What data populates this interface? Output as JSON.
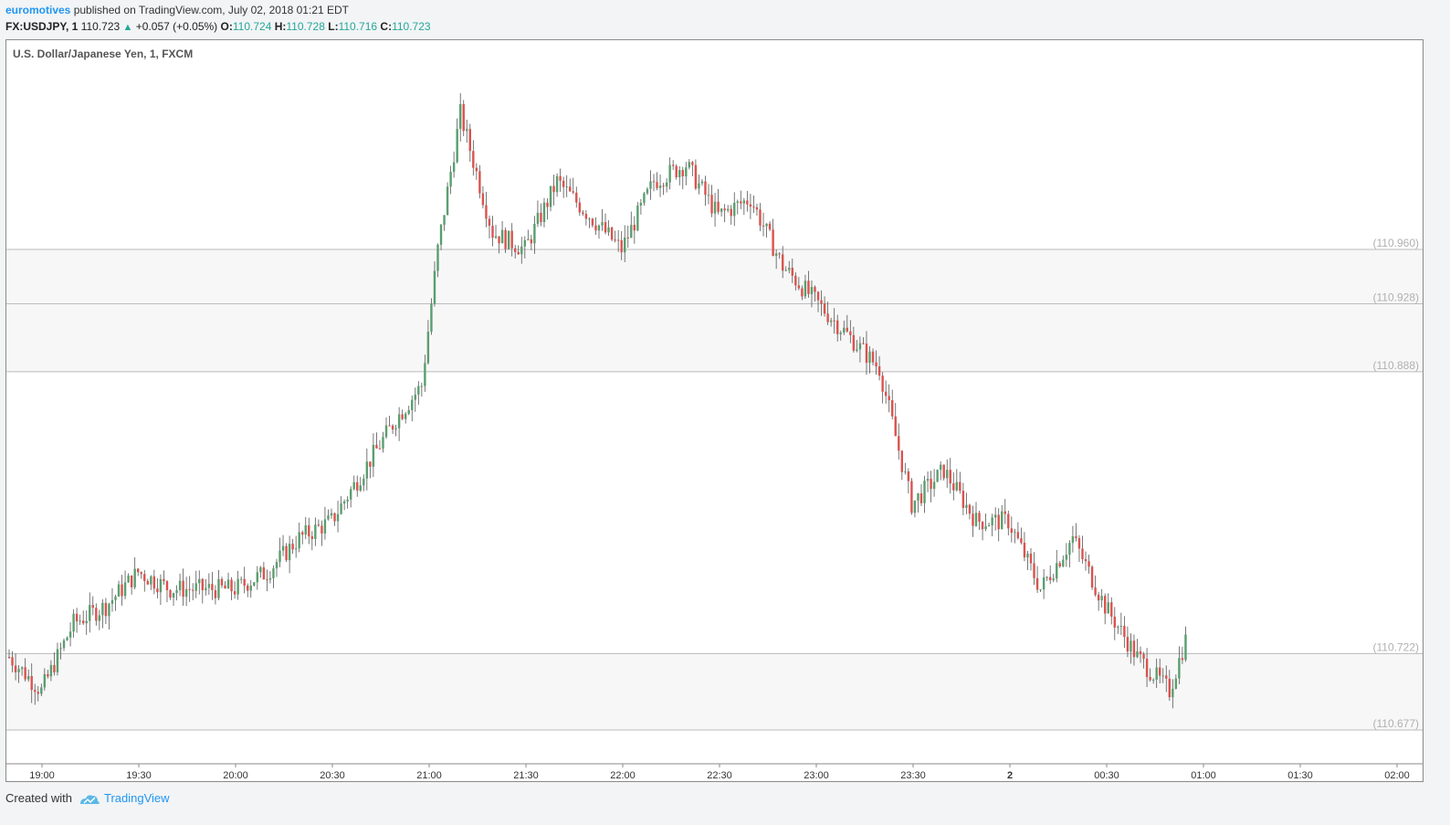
{
  "header": {
    "author": "euromotives",
    "published": " published on TradingView.com, July 02, 2018 01:21 EDT",
    "symbol": "FX:USDJPY, 1",
    "last": "110.723",
    "change_arrow": "▲",
    "change": "+0.057 (+0.05%)",
    "o_label": "O:",
    "o": "110.724",
    "h_label": "H:",
    "h": "110.728",
    "l_label": "L:",
    "l": "110.716",
    "c_label": "C:",
    "c": "110.723"
  },
  "footer": {
    "created_with": "Created with",
    "brand": "TradingView"
  },
  "colors": {
    "up": "#5a9e6f",
    "down": "#d9534f",
    "zone": "#f7f7f7",
    "grid": "#bbbbbb",
    "label": "#b0b0b0"
  },
  "chart_data": {
    "type": "candlestick",
    "title": "U.S. Dollar/Japanese Yen, 1, FXCM",
    "x_tick_labels": [
      "19:00",
      "19:30",
      "20:00",
      "20:30",
      "21:00",
      "21:30",
      "22:00",
      "22:30",
      "23:00",
      "23:30",
      "2",
      "00:30",
      "01:00",
      "01:30",
      "02:00"
    ],
    "price_levels": [
      110.96,
      110.928,
      110.888,
      110.722,
      110.677
    ],
    "price_level_labels": [
      "(110.960)",
      "(110.928)",
      "(110.888)",
      "(110.722)",
      "(110.677)"
    ],
    "zones": [
      [
        110.96,
        110.928
      ],
      [
        110.928,
        110.888
      ],
      [
        110.722,
        110.677
      ]
    ],
    "close_path": [
      [
        0,
        110.72
      ],
      [
        10,
        110.7
      ],
      [
        20,
        110.74
      ],
      [
        30,
        110.75
      ],
      [
        40,
        110.77
      ],
      [
        50,
        110.76
      ],
      [
        60,
        110.76
      ],
      [
        70,
        110.76
      ],
      [
        80,
        110.77
      ],
      [
        90,
        110.79
      ],
      [
        100,
        110.8
      ],
      [
        110,
        110.83
      ],
      [
        120,
        110.86
      ],
      [
        128,
        110.88
      ],
      [
        133,
        110.96
      ],
      [
        140,
        111.04
      ],
      [
        150,
        110.97
      ],
      [
        160,
        110.96
      ],
      [
        170,
        111.0
      ],
      [
        180,
        110.98
      ],
      [
        190,
        110.96
      ],
      [
        200,
        111.0
      ],
      [
        210,
        111.01
      ],
      [
        220,
        110.98
      ],
      [
        230,
        110.99
      ],
      [
        240,
        110.95
      ],
      [
        250,
        110.93
      ],
      [
        260,
        110.91
      ],
      [
        270,
        110.89
      ],
      [
        280,
        110.81
      ],
      [
        290,
        110.83
      ],
      [
        300,
        110.8
      ],
      [
        310,
        110.8
      ],
      [
        320,
        110.76
      ],
      [
        330,
        110.79
      ],
      [
        340,
        110.75
      ],
      [
        350,
        110.72
      ],
      [
        360,
        110.7
      ],
      [
        365,
        110.73
      ]
    ],
    "time_span_minutes": 385,
    "y_range": [
      110.65,
      111.07
    ]
  }
}
